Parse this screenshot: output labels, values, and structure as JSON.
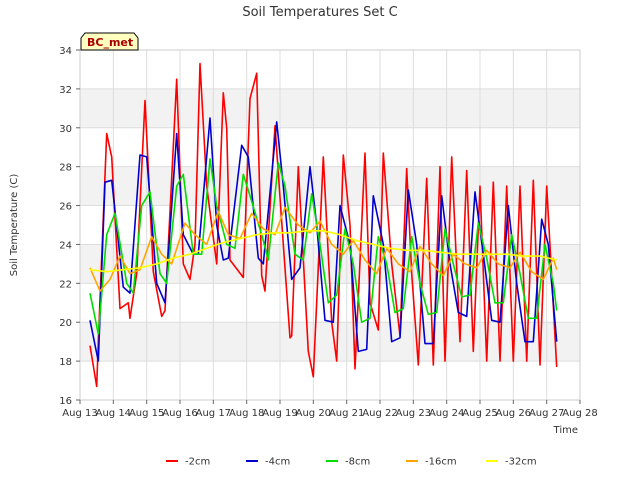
{
  "chart_data": {
    "type": "line",
    "title": "Soil Temperatures Set C",
    "xlabel": "Time",
    "ylabel": "Soil Temperature (C)",
    "badge": "BC_met",
    "xlim": [
      13,
      28
    ],
    "ylim": [
      16,
      34
    ],
    "x_ticks": [
      {
        "value": 13,
        "label": "Aug 13"
      },
      {
        "value": 14,
        "label": "Aug 14"
      },
      {
        "value": 15,
        "label": "Aug 15"
      },
      {
        "value": 16,
        "label": "Aug 16"
      },
      {
        "value": 17,
        "label": "Aug 17"
      },
      {
        "value": 18,
        "label": "Aug 18"
      },
      {
        "value": 19,
        "label": "Aug 19"
      },
      {
        "value": 20,
        "label": "Aug 20"
      },
      {
        "value": 21,
        "label": "Aug 21"
      },
      {
        "value": 22,
        "label": "Aug 22"
      },
      {
        "value": 23,
        "label": "Aug 23"
      },
      {
        "value": 24,
        "label": "Aug 24"
      },
      {
        "value": 25,
        "label": "Aug 25"
      },
      {
        "value": 26,
        "label": "Aug 26"
      },
      {
        "value": 27,
        "label": "Aug 27"
      },
      {
        "value": 28,
        "label": "Aug 28"
      }
    ],
    "y_ticks": [
      16,
      18,
      20,
      22,
      24,
      26,
      28,
      30,
      32,
      34
    ],
    "grid": true,
    "banded_background": true,
    "legend_position": "bottom-center",
    "series": [
      {
        "name": "-2cm",
        "color": "#ff0000",
        "x": [
          13.3,
          13.5,
          13.55,
          13.8,
          13.95,
          14.2,
          14.45,
          14.5,
          14.7,
          14.95,
          15.2,
          15.45,
          15.55,
          15.9,
          16.1,
          16.3,
          16.45,
          16.6,
          16.8,
          17.1,
          17.3,
          17.4,
          17.5,
          17.9,
          18.1,
          18.3,
          18.45,
          18.55,
          18.85,
          19.1,
          19.3,
          19.35,
          19.55,
          19.85,
          20.0,
          20.3,
          20.55,
          20.7,
          20.9,
          21.1,
          21.25,
          21.55,
          21.7,
          21.95,
          22.1,
          22.35,
          22.6,
          22.8,
          22.95,
          23.15,
          23.4,
          23.6,
          23.8,
          23.95,
          24.15,
          24.4,
          24.6,
          24.8,
          25.0,
          25.2,
          25.4,
          25.6,
          25.8,
          26.0,
          26.2,
          26.4,
          26.6,
          26.8,
          27.0,
          27.3
        ],
        "y": [
          18.8,
          16.7,
          19.0,
          29.7,
          28.5,
          20.7,
          21.0,
          20.2,
          22.5,
          31.4,
          22.6,
          20.3,
          20.6,
          32.5,
          23.0,
          22.2,
          24.0,
          33.3,
          27.0,
          23.0,
          31.8,
          30.0,
          23.2,
          22.3,
          31.5,
          32.8,
          22.4,
          21.6,
          30.1,
          24.0,
          19.2,
          19.3,
          28.0,
          18.5,
          17.2,
          28.5,
          20.0,
          18.0,
          28.6,
          25.0,
          17.6,
          28.7,
          21.0,
          19.6,
          28.7,
          23.0,
          19.3,
          27.9,
          22.5,
          17.8,
          27.4,
          17.8,
          28.0,
          18.0,
          28.5,
          19.0,
          27.8,
          18.5,
          27.0,
          18.0,
          27.2,
          18.0,
          27.0,
          18.0,
          27.0,
          18.0,
          27.3,
          17.8,
          27.0,
          17.7
        ]
      },
      {
        "name": "-4cm",
        "color": "#0000cc",
        "x": [
          13.3,
          13.55,
          13.75,
          13.95,
          14.3,
          14.5,
          14.8,
          15.0,
          15.3,
          15.55,
          15.9,
          16.1,
          16.4,
          16.55,
          16.9,
          17.1,
          17.3,
          17.45,
          17.85,
          18.05,
          18.35,
          18.5,
          18.9,
          19.1,
          19.35,
          19.6,
          19.9,
          20.1,
          20.35,
          20.6,
          20.8,
          21.1,
          21.35,
          21.6,
          21.8,
          22.1,
          22.35,
          22.6,
          22.85,
          23.1,
          23.35,
          23.6,
          23.85,
          24.1,
          24.35,
          24.6,
          24.85,
          25.1,
          25.35,
          25.6,
          25.85,
          26.1,
          26.35,
          26.6,
          26.85,
          27.05,
          27.3
        ],
        "y": [
          20.1,
          18.0,
          27.2,
          27.3,
          21.8,
          21.5,
          28.6,
          28.5,
          22.0,
          21.0,
          29.7,
          24.5,
          23.5,
          23.5,
          30.5,
          25.0,
          23.2,
          23.3,
          29.1,
          28.5,
          23.3,
          23.0,
          30.3,
          27.0,
          22.2,
          22.8,
          28.0,
          25.0,
          20.1,
          20.0,
          26.0,
          24.0,
          18.5,
          18.6,
          26.5,
          24.0,
          19.0,
          19.2,
          26.8,
          24.0,
          18.9,
          18.9,
          26.5,
          23.0,
          20.5,
          20.3,
          26.7,
          23.5,
          20.1,
          20.0,
          26.0,
          22.0,
          19.0,
          19.0,
          25.3,
          24.0,
          19.0
        ]
      },
      {
        "name": "-8cm",
        "color": "#00dd00",
        "x": [
          13.3,
          13.55,
          13.8,
          14.05,
          14.4,
          14.6,
          14.85,
          15.1,
          15.4,
          15.6,
          15.9,
          16.1,
          16.4,
          16.65,
          16.9,
          17.1,
          17.4,
          17.65,
          17.9,
          18.1,
          18.45,
          18.65,
          18.95,
          19.15,
          19.45,
          19.7,
          19.95,
          20.2,
          20.45,
          20.7,
          20.95,
          21.2,
          21.45,
          21.7,
          21.95,
          22.2,
          22.45,
          22.7,
          22.95,
          23.2,
          23.45,
          23.7,
          23.95,
          24.2,
          24.45,
          24.7,
          24.95,
          25.2,
          25.45,
          25.7,
          25.95,
          26.2,
          26.45,
          26.7,
          26.95,
          27.2,
          27.3
        ],
        "y": [
          21.5,
          19.4,
          24.5,
          25.6,
          22.0,
          21.5,
          26.0,
          26.7,
          22.5,
          22.0,
          27.0,
          27.6,
          23.5,
          23.5,
          28.4,
          26.0,
          24.0,
          23.8,
          27.6,
          26.5,
          24.5,
          23.2,
          28.2,
          27.0,
          23.5,
          23.2,
          26.6,
          24.0,
          21.0,
          21.4,
          24.8,
          23.0,
          20.0,
          20.2,
          24.4,
          23.0,
          20.5,
          20.7,
          24.4,
          22.0,
          20.4,
          20.5,
          24.8,
          23.0,
          21.3,
          21.4,
          25.1,
          23.3,
          21.0,
          21.0,
          24.5,
          22.5,
          20.2,
          20.2,
          24.0,
          22.0,
          20.6
        ]
      },
      {
        "name": "-16cm",
        "color": "#ffa500",
        "x": [
          13.3,
          13.6,
          13.9,
          14.2,
          14.5,
          14.8,
          15.15,
          15.45,
          15.75,
          16.15,
          16.45,
          16.8,
          17.15,
          17.45,
          17.8,
          18.15,
          18.5,
          18.85,
          19.15,
          19.55,
          19.9,
          20.2,
          20.55,
          20.9,
          21.2,
          21.55,
          21.9,
          22.2,
          22.55,
          22.9,
          23.2,
          23.55,
          23.9,
          24.2,
          24.55,
          24.9,
          25.2,
          25.55,
          25.9,
          26.2,
          26.55,
          26.9,
          27.2,
          27.3
        ],
        "y": [
          22.8,
          21.6,
          22.2,
          23.4,
          22.5,
          22.7,
          24.4,
          23.5,
          23.0,
          25.1,
          24.5,
          24.0,
          25.7,
          24.5,
          24.3,
          25.6,
          24.8,
          24.5,
          25.9,
          25.0,
          24.6,
          25.2,
          24.0,
          23.5,
          24.2,
          23.2,
          22.5,
          23.8,
          23.0,
          22.6,
          23.9,
          23.0,
          22.4,
          23.5,
          23.0,
          22.8,
          23.7,
          23.0,
          22.8,
          23.6,
          22.6,
          22.2,
          23.3,
          22.7
        ]
      },
      {
        "name": "-32cm",
        "color": "#ffff00",
        "x": [
          13.3,
          13.8,
          14.3,
          14.8,
          15.3,
          15.8,
          16.3,
          16.8,
          17.3,
          17.8,
          18.3,
          18.8,
          19.3,
          19.8,
          20.3,
          20.8,
          21.3,
          21.8,
          22.3,
          22.8,
          23.3,
          23.8,
          24.3,
          24.8,
          25.3,
          25.8,
          26.3,
          26.8,
          27.3
        ],
        "y": [
          22.7,
          22.6,
          22.7,
          22.8,
          23.0,
          23.3,
          23.5,
          23.8,
          24.1,
          24.3,
          24.5,
          24.6,
          24.6,
          24.7,
          24.7,
          24.5,
          24.2,
          24.0,
          23.8,
          23.7,
          23.7,
          23.6,
          23.5,
          23.5,
          23.5,
          23.5,
          23.4,
          23.4,
          23.2
        ]
      }
    ]
  }
}
